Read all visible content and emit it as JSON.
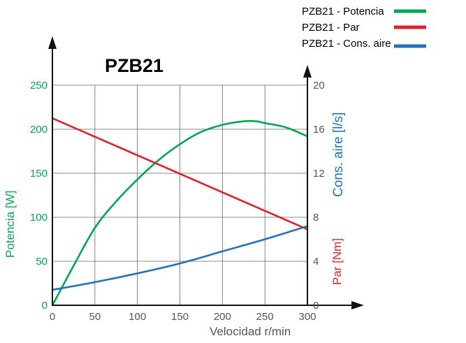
{
  "chart_data": {
    "type": "line",
    "title": "PZB21",
    "xlabel": "Velocidad r/min",
    "ylabel_left": "Potencia [W]",
    "ylabel_right_1": "Cons. aire [l/s]",
    "ylabel_right_2": "Par [Nm]",
    "x_ticks": [
      "0",
      "50",
      "100",
      "150",
      "200",
      "250",
      "300"
    ],
    "y_left_ticks": [
      "0",
      "50",
      "100",
      "150",
      "200",
      "250"
    ],
    "y_right_ticks": [
      "0",
      "4",
      "8",
      "12",
      "16",
      "20"
    ],
    "xlim": [
      0,
      300
    ],
    "ylim_left": [
      0,
      250
    ],
    "ylim_right": [
      0,
      20
    ],
    "grid": true,
    "legend_position": "top-right",
    "series": [
      {
        "name": "PZB21 - Potencia",
        "axis": "left",
        "color": "#00a651",
        "x": [
          0,
          10,
          25,
          50,
          75,
          100,
          125,
          150,
          175,
          200,
          225,
          240,
          250,
          275,
          300
        ],
        "values": [
          0,
          18,
          45,
          88,
          118,
          143,
          165,
          183,
          197,
          205,
          209,
          209,
          207,
          202,
          192
        ]
      },
      {
        "name": "PZB21 - Par",
        "axis": "right",
        "unit": "Nm",
        "color": "#e0202a",
        "x": [
          0,
          300
        ],
        "values": [
          17.0,
          6.9
        ]
      },
      {
        "name": "PZB21 - Cons. aire",
        "axis": "right",
        "unit": "l/s",
        "color": "#1f74b8",
        "x": [
          0,
          50,
          100,
          150,
          200,
          250,
          300
        ],
        "values": [
          1.4,
          2.1,
          2.9,
          3.8,
          4.9,
          6.0,
          7.2
        ]
      }
    ]
  }
}
